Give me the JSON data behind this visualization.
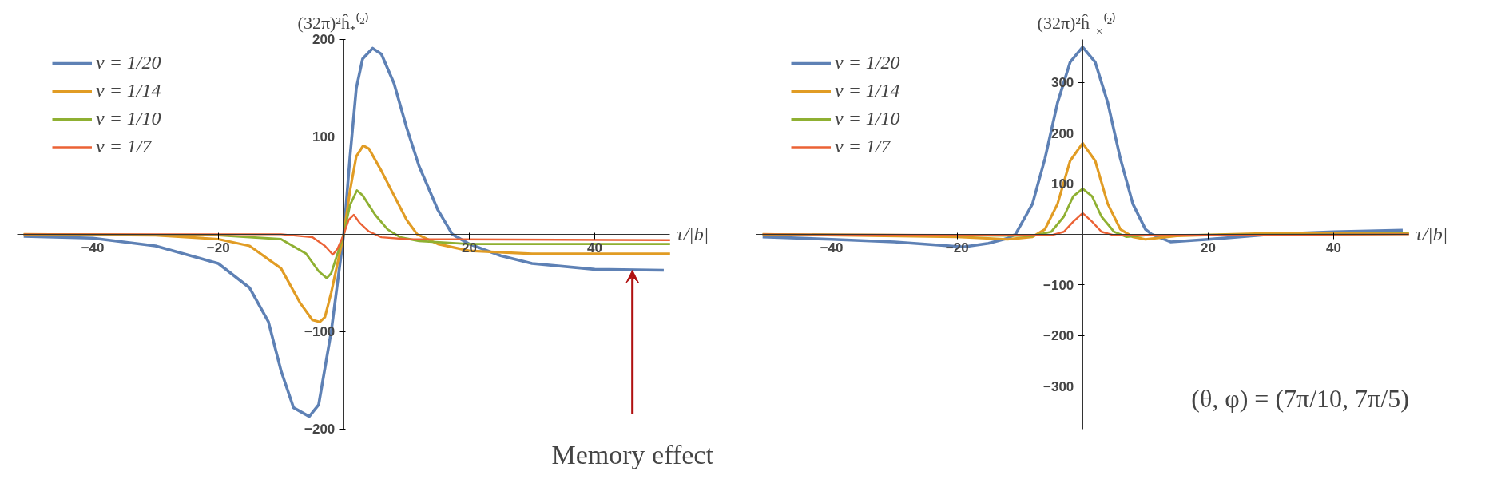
{
  "chart_data": [
    {
      "type": "line",
      "xlabel": "τ/|b|",
      "ylabel": "(32π)²ĥ₊⁽²⁾",
      "xlim": [
        -52,
        52
      ],
      "ylim": [
        -200,
        200
      ],
      "xticks": [
        -40,
        -20,
        20,
        40
      ],
      "yticks": [
        -200,
        -100,
        100,
        200
      ],
      "grid": false,
      "legend": "top left",
      "annotations": [
        {
          "text": "Memory effect",
          "x": 46,
          "y": -37
        }
      ],
      "series": [
        {
          "name": "v = 1/20",
          "color": "#5e81b5",
          "x": [
            -51,
            -40,
            -30,
            -20,
            -15,
            -12,
            -10,
            -8,
            -5.5,
            -4,
            -2,
            0,
            1,
            2,
            3,
            4.6,
            6,
            8,
            10,
            12,
            15,
            17.3,
            20,
            25,
            30,
            40,
            51
          ],
          "values": [
            -2,
            -4,
            -12,
            -30,
            -55,
            -90,
            -140,
            -178,
            -187,
            -175,
            -100,
            0,
            80,
            150,
            180,
            191,
            185,
            155,
            110,
            70,
            25,
            0,
            -10,
            -22,
            -30,
            -36,
            -37
          ]
        },
        {
          "name": "v = 1/14",
          "color": "#e19c24",
          "x": [
            -51,
            -30,
            -20,
            -15,
            -10,
            -7,
            -5,
            -3.8,
            -3,
            -2,
            -1,
            0,
            1,
            2,
            3.1,
            4,
            6,
            8,
            10,
            11.7,
            15,
            20,
            30,
            52
          ],
          "values": [
            0,
            -1,
            -5,
            -12,
            -35,
            -70,
            -88,
            -90,
            -85,
            -60,
            -30,
            0,
            45,
            80,
            91,
            88,
            65,
            40,
            15,
            0,
            -10,
            -17,
            -20,
            -20
          ]
        },
        {
          "name": "v = 1/10",
          "color": "#8fb032",
          "x": [
            -51,
            -20,
            -10,
            -6,
            -4,
            -2.7,
            -2,
            -1,
            0,
            1,
            2.1,
            3,
            5,
            7,
            9,
            12,
            20,
            52
          ],
          "values": [
            0,
            -1,
            -5,
            -20,
            -38,
            -45,
            -40,
            -20,
            0,
            30,
            45,
            40,
            20,
            5,
            -3,
            -7,
            -10,
            -10
          ]
        },
        {
          "name": "v = 1/7",
          "color": "#eb6235",
          "x": [
            -51,
            -10,
            -5,
            -3,
            -1.75,
            -1,
            0,
            0.8,
            1.6,
            2.5,
            4,
            6,
            10,
            52
          ],
          "values": [
            0,
            0,
            -3,
            -12,
            -21,
            -15,
            0,
            15,
            20,
            12,
            3,
            -3,
            -5,
            -6
          ]
        }
      ]
    },
    {
      "type": "line",
      "xlabel": "τ/|b|",
      "ylabel": "(32π)²ĥ$_{×}$⁽²⁾",
      "xlim": [
        -52,
        52
      ],
      "ylim": [
        -385,
        385
      ],
      "xticks": [
        -40,
        -20,
        20,
        40
      ],
      "yticks": [
        -300,
        -200,
        -100,
        100,
        200,
        300
      ],
      "grid": false,
      "legend": "top left",
      "annotations": [
        "(θ, φ) = (7π/10, 7π/5)"
      ],
      "series": [
        {
          "name": "v = 1/20",
          "color": "#5e81b5",
          "x": [
            -51,
            -40,
            -30,
            -19,
            -15,
            -12,
            -10.7,
            -8,
            -6,
            -4,
            -2,
            0,
            2,
            4,
            6,
            8,
            10,
            11,
            14,
            20,
            30,
            40,
            51
          ],
          "values": [
            -5,
            -10,
            -15,
            -25,
            -18,
            -8,
            0,
            60,
            150,
            260,
            340,
            370,
            340,
            260,
            150,
            60,
            10,
            0,
            -15,
            -10,
            0,
            5,
            8
          ]
        },
        {
          "name": "v = 1/14",
          "color": "#e19c24",
          "x": [
            -51,
            -20,
            -12,
            -8,
            -6,
            -4,
            -2,
            0,
            2,
            4,
            6,
            8,
            10,
            15,
            30,
            52
          ],
          "values": [
            0,
            -5,
            -10,
            -5,
            10,
            60,
            145,
            180,
            145,
            60,
            10,
            -5,
            -10,
            -3,
            2,
            3
          ]
        },
        {
          "name": "v = 1/10",
          "color": "#8fb032",
          "x": [
            -51,
            -8,
            -5,
            -3,
            -1.5,
            0,
            1.5,
            3,
            5,
            7,
            10,
            52
          ],
          "values": [
            0,
            -3,
            5,
            35,
            75,
            90,
            75,
            35,
            5,
            -5,
            -2,
            1
          ]
        },
        {
          "name": "v = 1/7",
          "color": "#eb6235",
          "x": [
            -51,
            -5,
            -3,
            -1.5,
            0,
            1.5,
            3,
            5,
            52
          ],
          "values": [
            0,
            -2,
            5,
            25,
            42,
            25,
            5,
            -2,
            0
          ]
        }
      ]
    }
  ]
}
